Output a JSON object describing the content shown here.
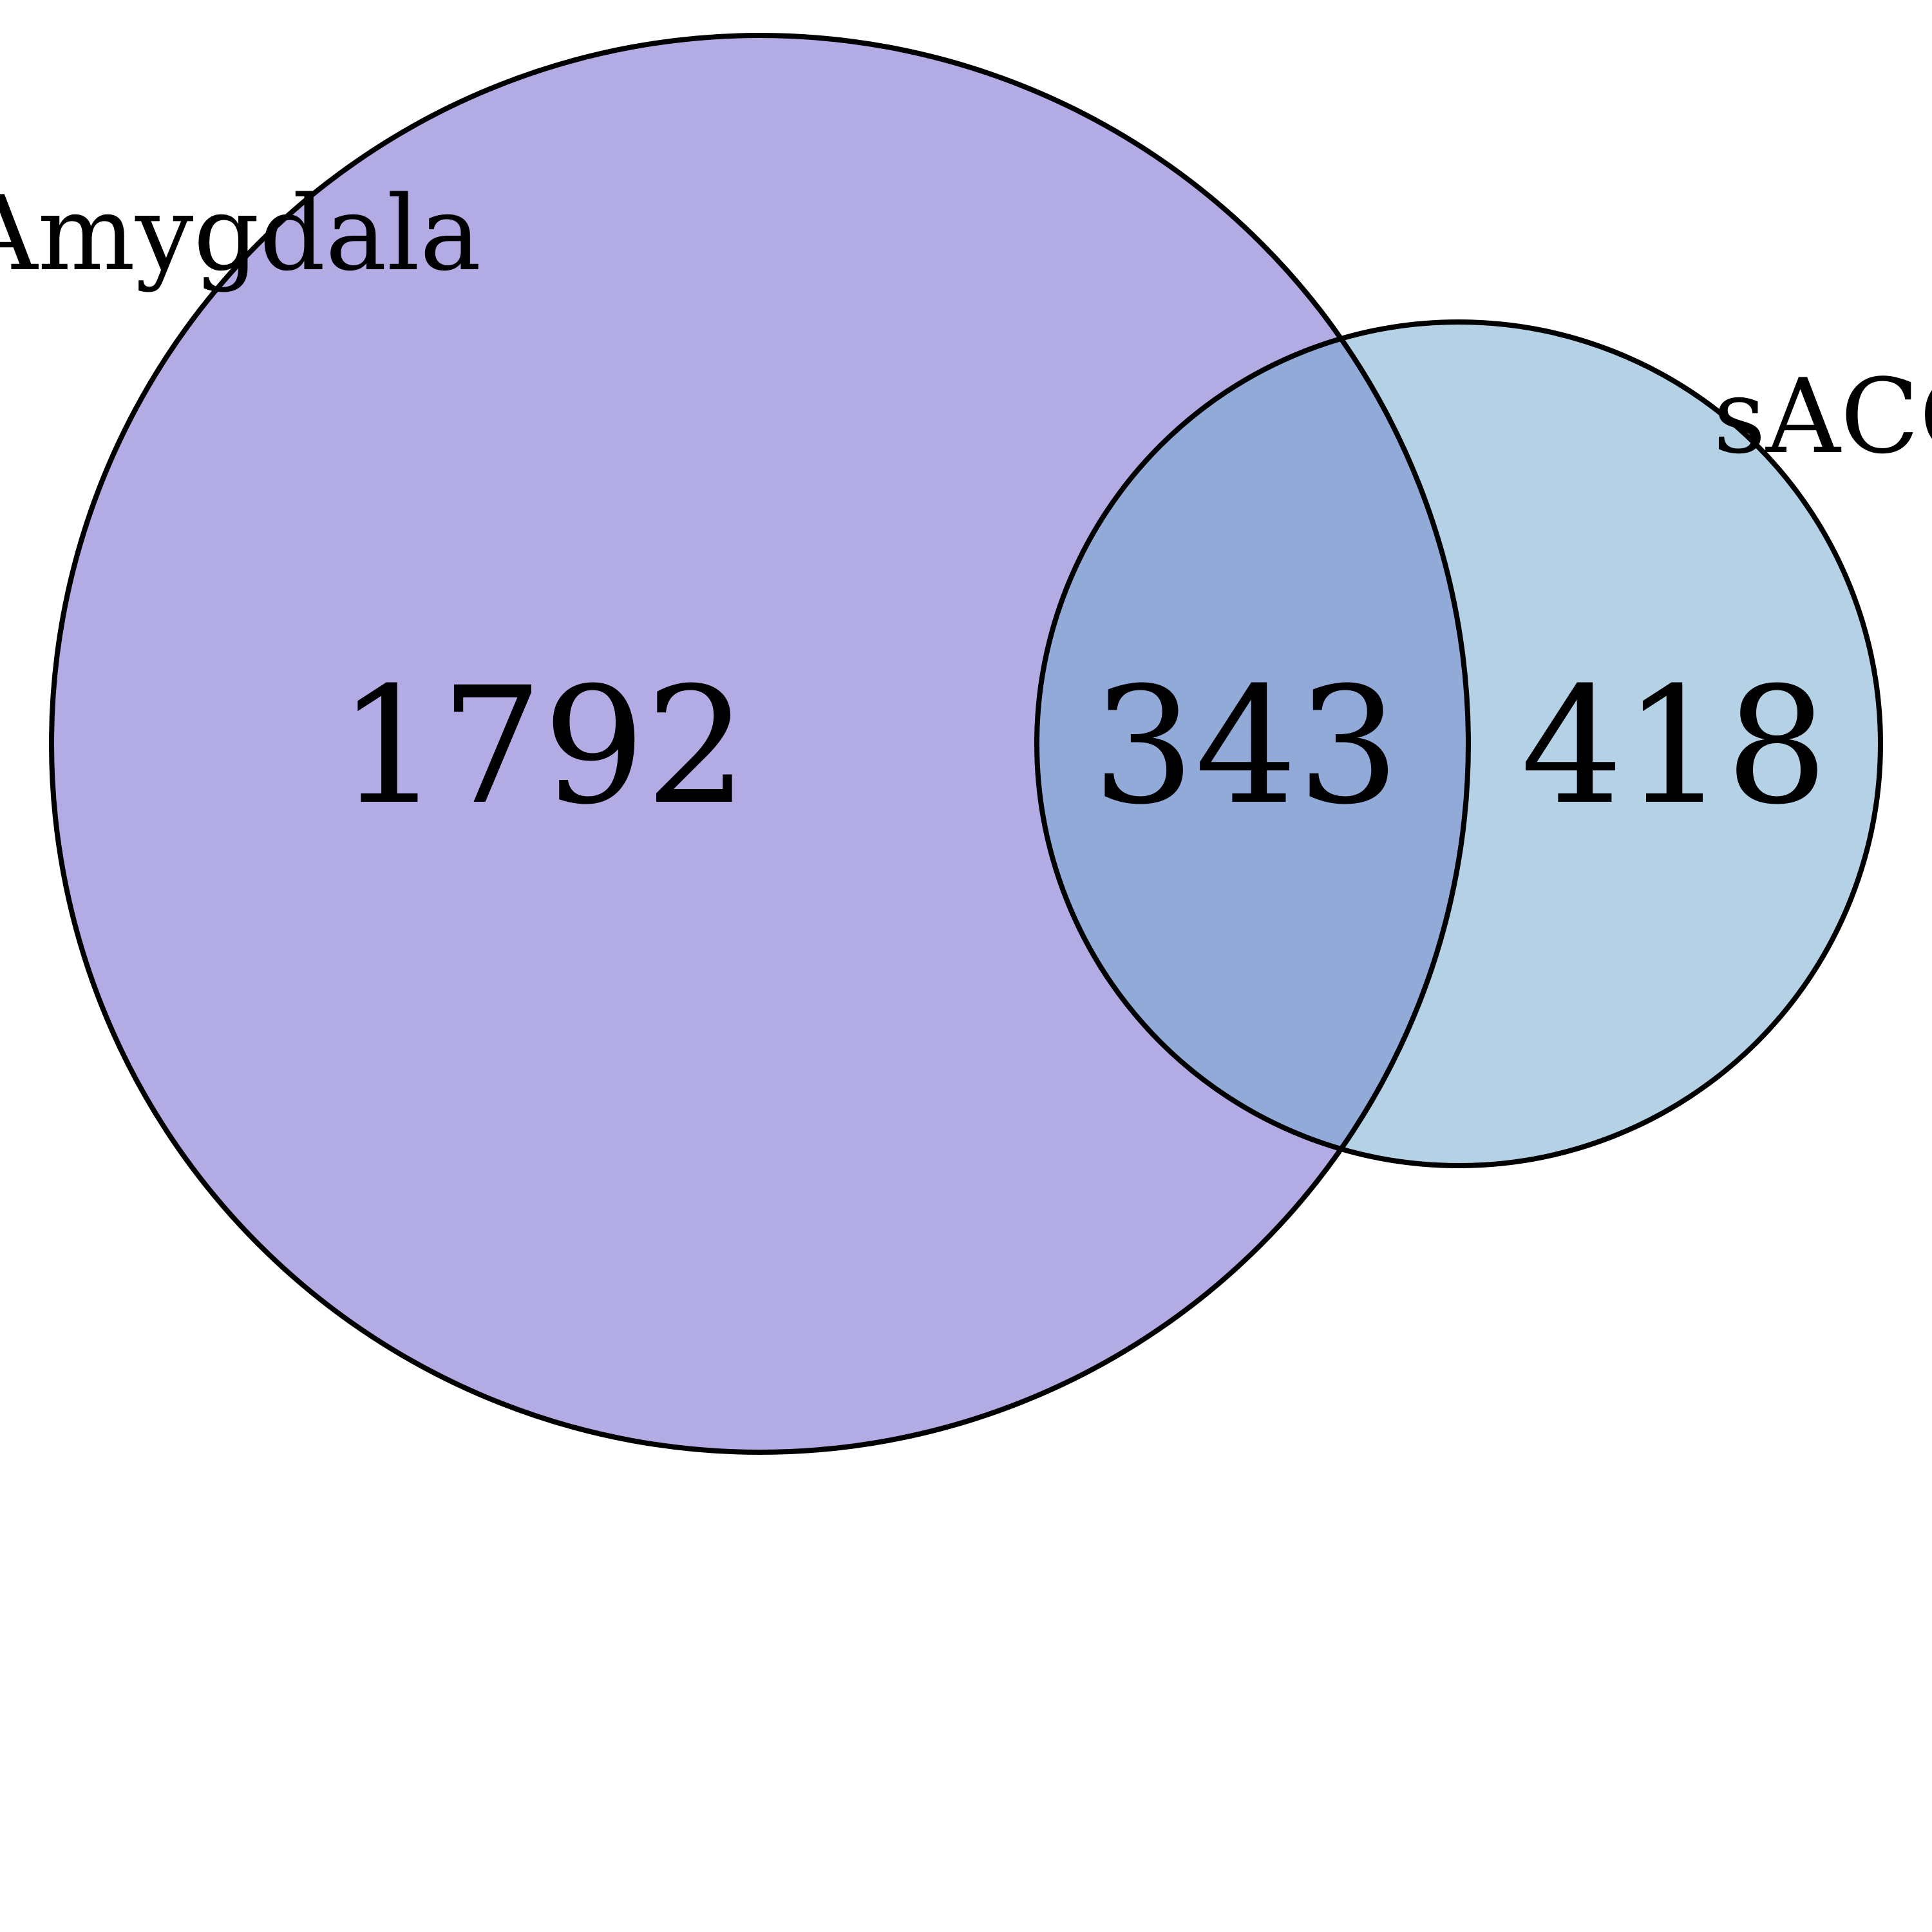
{
  "diagram": {
    "type": "venn2",
    "sets": [
      {
        "label": "Amygdala",
        "color": "#b3acE4"
      },
      {
        "label": "sACC",
        "color": "#b4d1e5"
      }
    ],
    "overlap_color": "#92aad8",
    "outline_color": "#000000",
    "counts": {
      "only_a": "1792",
      "both": "343",
      "only_b": "418"
    }
  }
}
